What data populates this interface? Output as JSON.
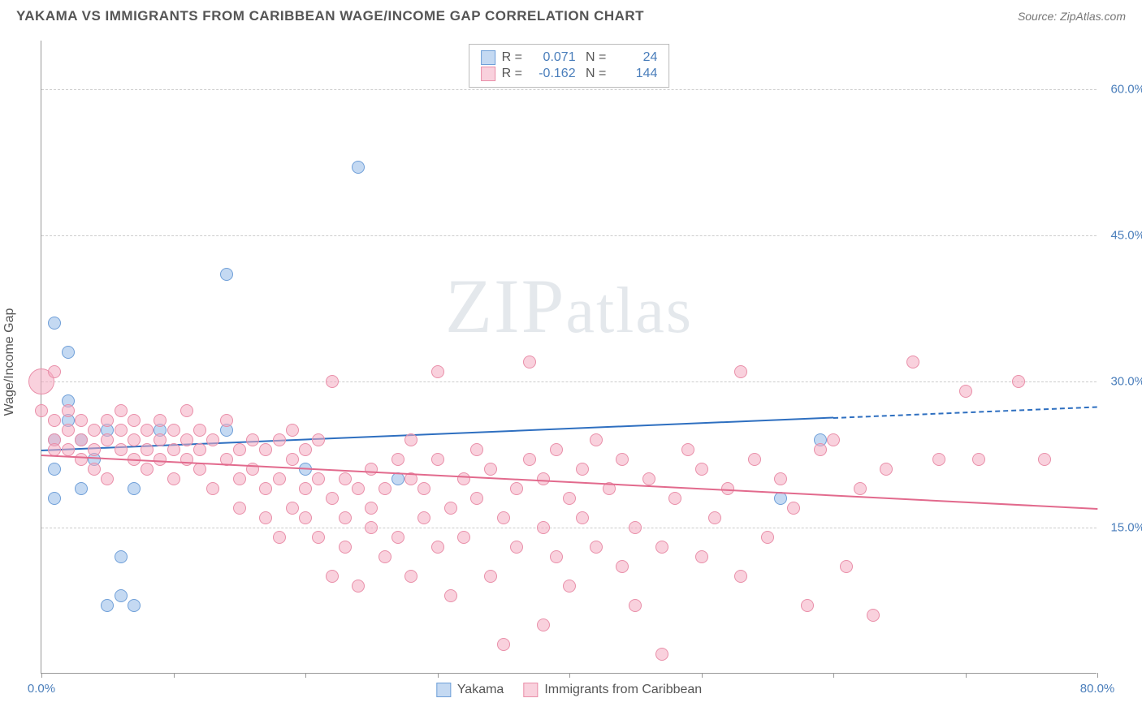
{
  "title": "YAKAMA VS IMMIGRANTS FROM CARIBBEAN WAGE/INCOME GAP CORRELATION CHART",
  "source": "Source: ZipAtlas.com",
  "watermark": "ZIPatlas",
  "chart": {
    "type": "scatter",
    "ylabel": "Wage/Income Gap",
    "xlim": [
      0,
      80
    ],
    "ylim": [
      0,
      65
    ],
    "x_ticks": [
      0,
      10,
      20,
      30,
      40,
      50,
      60,
      70,
      80
    ],
    "x_tick_labels": {
      "0": "0.0%",
      "80": "80.0%"
    },
    "y_ticks": [
      15,
      30,
      45,
      60
    ],
    "y_tick_labels": {
      "15": "15.0%",
      "30": "30.0%",
      "45": "45.0%",
      "60": "60.0%"
    },
    "background_color": "#ffffff",
    "grid_color": "#cccccc",
    "axis_color": "#999999",
    "label_color": "#4a7ebb",
    "point_radius": 8,
    "series": [
      {
        "name": "Yakama",
        "fill": "rgba(148,186,231,0.55)",
        "stroke": "#6f9fd8",
        "reg_color": "#2e6fc0",
        "R": "0.071",
        "N": "24",
        "regression": {
          "x1": 0,
          "y1": 23.0,
          "x2": 80,
          "y2": 27.5,
          "solid_x_max": 60
        },
        "points": [
          [
            1,
            36
          ],
          [
            2,
            33
          ],
          [
            2,
            28
          ],
          [
            2,
            26
          ],
          [
            1,
            24
          ],
          [
            3,
            24
          ],
          [
            1,
            21
          ],
          [
            4,
            22
          ],
          [
            1,
            18
          ],
          [
            5,
            25
          ],
          [
            3,
            19
          ],
          [
            5,
            7
          ],
          [
            6,
            12
          ],
          [
            6,
            8
          ],
          [
            7,
            7
          ],
          [
            7,
            19
          ],
          [
            9,
            25
          ],
          [
            14,
            41
          ],
          [
            14,
            25
          ],
          [
            20,
            21
          ],
          [
            24,
            52
          ],
          [
            27,
            20
          ],
          [
            59,
            24
          ],
          [
            56,
            18
          ]
        ]
      },
      {
        "name": "Immigrants from Caribbean",
        "fill": "rgba(244,172,193,0.55)",
        "stroke": "#e98fa9",
        "reg_color": "#e26a8d",
        "R": "-0.162",
        "N": "144",
        "regression": {
          "x1": 0,
          "y1": 22.5,
          "x2": 80,
          "y2": 17.0,
          "solid_x_max": 80
        },
        "points": [
          [
            0,
            30
          ],
          [
            0,
            27
          ],
          [
            1,
            26
          ],
          [
            1,
            24
          ],
          [
            1,
            23
          ],
          [
            2,
            23
          ],
          [
            2,
            25
          ],
          [
            2,
            27
          ],
          [
            3,
            22
          ],
          [
            3,
            24
          ],
          [
            3,
            26
          ],
          [
            4,
            23
          ],
          [
            4,
            25
          ],
          [
            4,
            21
          ],
          [
            5,
            24
          ],
          [
            5,
            26
          ],
          [
            5,
            20
          ],
          [
            6,
            23
          ],
          [
            6,
            25
          ],
          [
            6,
            27
          ],
          [
            7,
            22
          ],
          [
            7,
            24
          ],
          [
            7,
            26
          ],
          [
            8,
            23
          ],
          [
            8,
            25
          ],
          [
            8,
            21
          ],
          [
            9,
            24
          ],
          [
            9,
            22
          ],
          [
            9,
            26
          ],
          [
            10,
            23
          ],
          [
            10,
            25
          ],
          [
            10,
            20
          ],
          [
            11,
            27
          ],
          [
            11,
            22
          ],
          [
            11,
            24
          ],
          [
            12,
            23
          ],
          [
            12,
            21
          ],
          [
            12,
            25
          ],
          [
            13,
            19
          ],
          [
            13,
            24
          ],
          [
            14,
            22
          ],
          [
            14,
            26
          ],
          [
            15,
            23
          ],
          [
            15,
            20
          ],
          [
            15,
            17
          ],
          [
            16,
            24
          ],
          [
            16,
            21
          ],
          [
            17,
            19
          ],
          [
            17,
            23
          ],
          [
            17,
            16
          ],
          [
            18,
            20
          ],
          [
            18,
            24
          ],
          [
            18,
            14
          ],
          [
            19,
            22
          ],
          [
            19,
            17
          ],
          [
            19,
            25
          ],
          [
            20,
            19
          ],
          [
            20,
            16
          ],
          [
            20,
            23
          ],
          [
            21,
            20
          ],
          [
            21,
            14
          ],
          [
            21,
            24
          ],
          [
            22,
            18
          ],
          [
            22,
            30
          ],
          [
            22,
            10
          ],
          [
            23,
            16
          ],
          [
            23,
            20
          ],
          [
            23,
            13
          ],
          [
            24,
            19
          ],
          [
            24,
            9
          ],
          [
            25,
            21
          ],
          [
            25,
            15
          ],
          [
            25,
            17
          ],
          [
            26,
            19
          ],
          [
            26,
            12
          ],
          [
            27,
            14
          ],
          [
            27,
            22
          ],
          [
            28,
            20
          ],
          [
            28,
            24
          ],
          [
            28,
            10
          ],
          [
            29,
            16
          ],
          [
            29,
            19
          ],
          [
            30,
            13
          ],
          [
            30,
            22
          ],
          [
            30,
            31
          ],
          [
            31,
            17
          ],
          [
            31,
            8
          ],
          [
            32,
            20
          ],
          [
            32,
            14
          ],
          [
            33,
            18
          ],
          [
            33,
            23
          ],
          [
            34,
            10
          ],
          [
            34,
            21
          ],
          [
            35,
            16
          ],
          [
            35,
            3
          ],
          [
            36,
            19
          ],
          [
            36,
            13
          ],
          [
            37,
            22
          ],
          [
            37,
            32
          ],
          [
            38,
            15
          ],
          [
            38,
            20
          ],
          [
            39,
            12
          ],
          [
            39,
            23
          ],
          [
            40,
            18
          ],
          [
            40,
            9
          ],
          [
            41,
            21
          ],
          [
            41,
            16
          ],
          [
            42,
            13
          ],
          [
            42,
            24
          ],
          [
            43,
            19
          ],
          [
            44,
            11
          ],
          [
            44,
            22
          ],
          [
            45,
            15
          ],
          [
            46,
            20
          ],
          [
            47,
            2
          ],
          [
            47,
            13
          ],
          [
            48,
            18
          ],
          [
            49,
            23
          ],
          [
            50,
            12
          ],
          [
            50,
            21
          ],
          [
            51,
            16
          ],
          [
            52,
            19
          ],
          [
            53,
            10
          ],
          [
            53,
            31
          ],
          [
            54,
            22
          ],
          [
            55,
            14
          ],
          [
            56,
            20
          ],
          [
            57,
            17
          ],
          [
            58,
            7
          ],
          [
            59,
            23
          ],
          [
            60,
            24
          ],
          [
            61,
            11
          ],
          [
            62,
            19
          ],
          [
            64,
            21
          ],
          [
            66,
            32
          ],
          [
            68,
            22
          ],
          [
            70,
            29
          ],
          [
            71,
            22
          ],
          [
            74,
            30
          ],
          [
            76,
            22
          ],
          [
            63,
            6
          ],
          [
            45,
            7
          ],
          [
            38,
            5
          ],
          [
            1,
            31
          ]
        ]
      }
    ]
  },
  "legend": {
    "series1": "Yakama",
    "series2": "Immigrants from Caribbean"
  }
}
